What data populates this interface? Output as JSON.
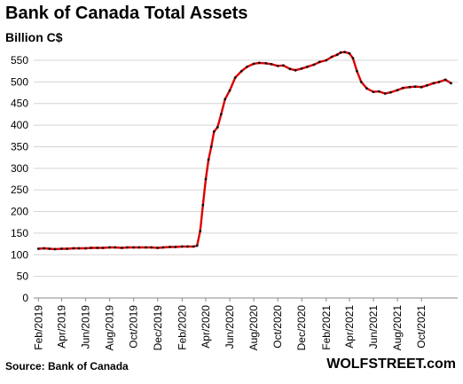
{
  "chart_data": {
    "type": "line",
    "title": "Bank of Canada Total Assets",
    "ylabel": "Billion C$",
    "xlabel": "",
    "ylim": [
      0,
      550
    ],
    "yticks": [
      0,
      50,
      100,
      150,
      200,
      250,
      300,
      350,
      400,
      450,
      500,
      550
    ],
    "grid": true,
    "legend": "none",
    "x_tick_labels": [
      "Feb/2019",
      "Apr/2019",
      "Jun/2019",
      "Aug/2019",
      "Oct/2019",
      "Dec/2019",
      "Feb/2020",
      "Apr/2020",
      "Jun/2020",
      "Aug/2020",
      "Oct/2020",
      "Dec/2020",
      "Feb/2021",
      "Apr/2021",
      "Jun/2021",
      "Aug/2021",
      "Oct/2021"
    ],
    "series": [
      {
        "color": "#dd0000",
        "marker_color": "#111111",
        "points": [
          [
            "2019-02-01",
            114
          ],
          [
            "2019-02-15",
            115
          ],
          [
            "2019-03-01",
            114
          ],
          [
            "2019-03-15",
            113
          ],
          [
            "2019-04-01",
            114
          ],
          [
            "2019-04-15",
            114
          ],
          [
            "2019-05-01",
            115
          ],
          [
            "2019-05-15",
            115
          ],
          [
            "2019-06-01",
            115
          ],
          [
            "2019-06-15",
            116
          ],
          [
            "2019-07-01",
            116
          ],
          [
            "2019-07-15",
            116
          ],
          [
            "2019-08-01",
            117
          ],
          [
            "2019-08-15",
            117
          ],
          [
            "2019-09-01",
            116
          ],
          [
            "2019-09-15",
            117
          ],
          [
            "2019-10-01",
            117
          ],
          [
            "2019-10-15",
            117
          ],
          [
            "2019-11-01",
            117
          ],
          [
            "2019-11-15",
            117
          ],
          [
            "2019-12-01",
            116
          ],
          [
            "2019-12-15",
            117
          ],
          [
            "2020-01-01",
            118
          ],
          [
            "2020-01-15",
            118
          ],
          [
            "2020-02-01",
            119
          ],
          [
            "2020-02-15",
            119
          ],
          [
            "2020-03-01",
            119
          ],
          [
            "2020-03-10",
            121
          ],
          [
            "2020-03-18",
            155
          ],
          [
            "2020-03-25",
            215
          ],
          [
            "2020-04-01",
            275
          ],
          [
            "2020-04-08",
            320
          ],
          [
            "2020-04-15",
            350
          ],
          [
            "2020-04-22",
            385
          ],
          [
            "2020-05-01",
            395
          ],
          [
            "2020-05-10",
            425
          ],
          [
            "2020-05-20",
            460
          ],
          [
            "2020-06-01",
            480
          ],
          [
            "2020-06-15",
            510
          ],
          [
            "2020-07-01",
            525
          ],
          [
            "2020-07-15",
            535
          ],
          [
            "2020-08-01",
            542
          ],
          [
            "2020-08-15",
            544
          ],
          [
            "2020-09-01",
            543
          ],
          [
            "2020-09-15",
            541
          ],
          [
            "2020-10-01",
            537
          ],
          [
            "2020-10-15",
            538
          ],
          [
            "2020-11-01",
            530
          ],
          [
            "2020-11-15",
            527
          ],
          [
            "2020-12-01",
            531
          ],
          [
            "2020-12-15",
            535
          ],
          [
            "2021-01-01",
            540
          ],
          [
            "2021-01-15",
            546
          ],
          [
            "2021-02-01",
            550
          ],
          [
            "2021-02-15",
            558
          ],
          [
            "2021-03-01",
            563
          ],
          [
            "2021-03-10",
            568
          ],
          [
            "2021-03-20",
            569
          ],
          [
            "2021-04-01",
            566
          ],
          [
            "2021-04-10",
            555
          ],
          [
            "2021-04-20",
            525
          ],
          [
            "2021-05-01",
            500
          ],
          [
            "2021-05-15",
            485
          ],
          [
            "2021-06-01",
            477
          ],
          [
            "2021-06-15",
            478
          ],
          [
            "2021-07-01",
            473
          ],
          [
            "2021-07-15",
            476
          ],
          [
            "2021-08-01",
            481
          ],
          [
            "2021-08-15",
            486
          ],
          [
            "2021-09-01",
            488
          ],
          [
            "2021-09-15",
            489
          ],
          [
            "2021-10-01",
            488
          ],
          [
            "2021-10-15",
            492
          ],
          [
            "2021-11-01",
            497
          ],
          [
            "2021-11-15",
            500
          ],
          [
            "2021-12-01",
            505
          ],
          [
            "2021-12-15",
            497
          ]
        ]
      }
    ]
  },
  "source": "Source: Bank of Canada",
  "brand": "WOLFSTREET.com"
}
